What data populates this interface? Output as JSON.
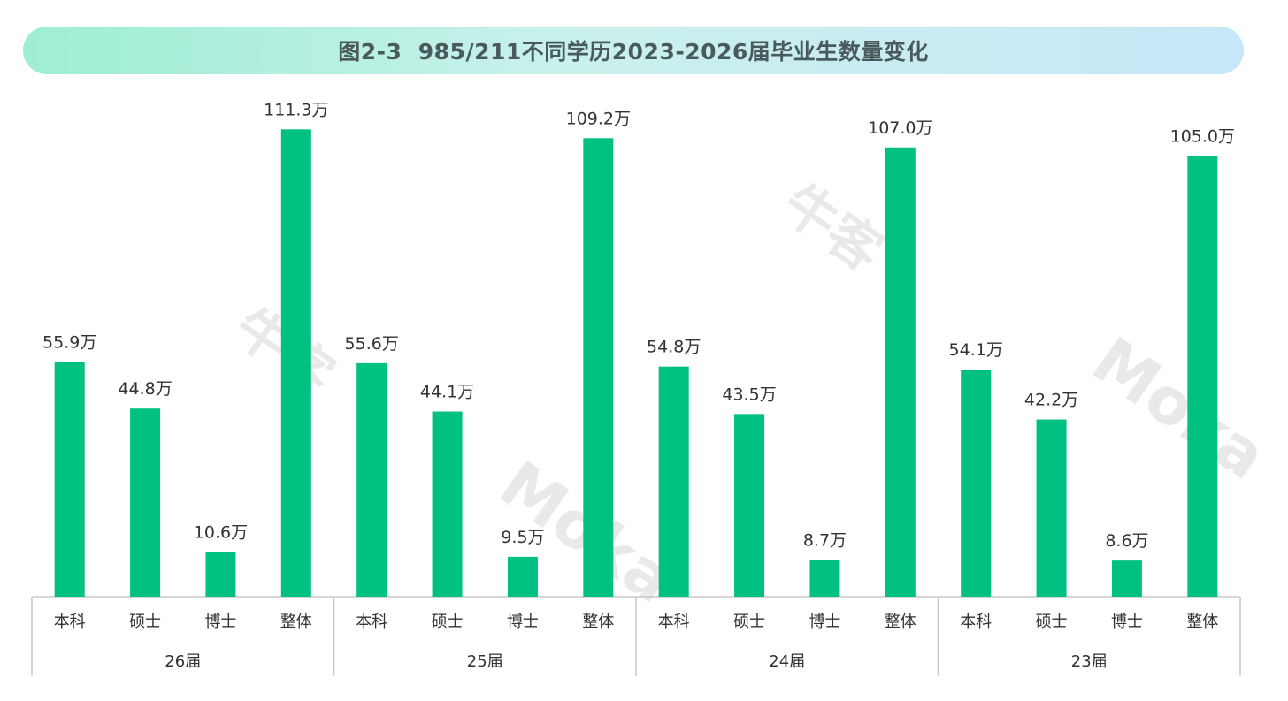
{
  "title": "图2-3  985/211不同学历2023-2026届毕业生数量变化",
  "colors": {
    "bar": "#00c182",
    "axis": "#c8c8c8",
    "title_bg_start": "#9eeed4",
    "title_bg_end": "#c6e7f8"
  },
  "watermark": {
    "brand_cn": "牛客",
    "brand_en": "Moka"
  },
  "chart_data": {
    "type": "bar",
    "title": "图2-3  985/211不同学历2023-2026届毕业生数量变化",
    "unit_suffix": "万",
    "ylim": [
      0,
      120
    ],
    "grid": false,
    "groups": [
      {
        "label": "26届",
        "categories": [
          "本科",
          "硕士",
          "博士",
          "整体"
        ],
        "values": [
          55.9,
          44.8,
          10.6,
          111.3
        ],
        "value_labels": [
          "55.9万",
          "44.8万",
          "10.6万",
          "111.3万"
        ]
      },
      {
        "label": "25届",
        "categories": [
          "本科",
          "硕士",
          "博士",
          "整体"
        ],
        "values": [
          55.6,
          44.1,
          9.5,
          109.2
        ],
        "value_labels": [
          "55.6万",
          "44.1万",
          "9.5万",
          "109.2万"
        ]
      },
      {
        "label": "24届",
        "categories": [
          "本科",
          "硕士",
          "博士",
          "整体"
        ],
        "values": [
          54.8,
          43.5,
          8.7,
          107.0
        ],
        "value_labels": [
          "54.8万",
          "43.5万",
          "8.7万",
          "107.0万"
        ]
      },
      {
        "label": "23届",
        "categories": [
          "本科",
          "硕士",
          "博士",
          "整体"
        ],
        "values": [
          54.1,
          42.2,
          8.6,
          105.0
        ],
        "value_labels": [
          "54.1万",
          "42.2万",
          "8.6万",
          "105.0万"
        ]
      }
    ]
  }
}
